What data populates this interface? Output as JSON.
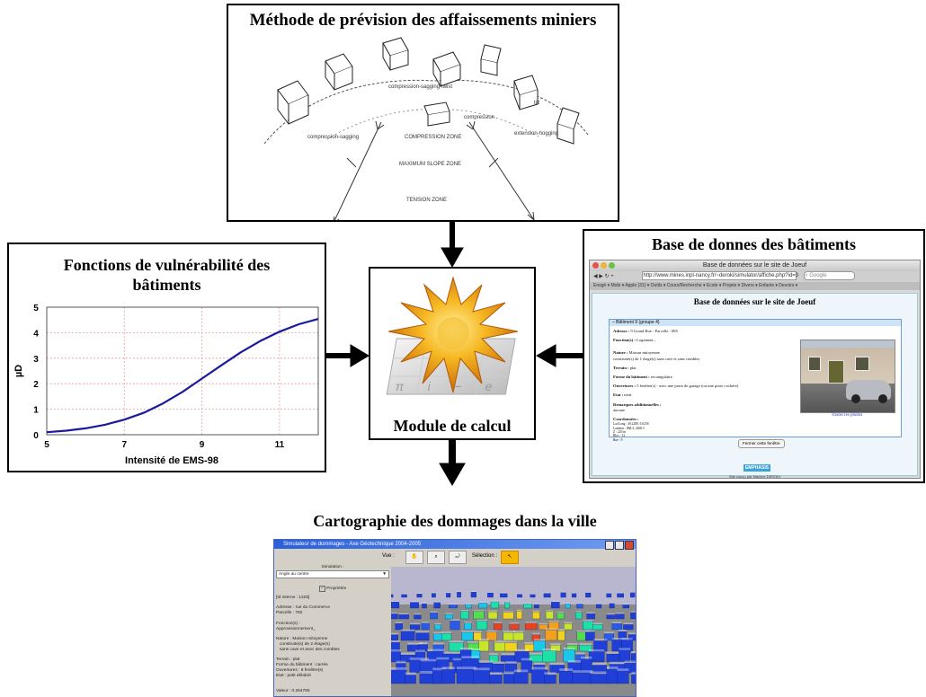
{
  "top": {
    "title": "Méthode de prévision des affaissements miniers",
    "labels": {
      "compression_sagging_twist": "compression-sagging-twist",
      "tilt": "tilt",
      "compression": "compression",
      "compression_sagging": "compression-sagging",
      "extension_hogging": "extension-hogging",
      "compression_zone": "COMPRESSION ZONE",
      "maximum_slope_zone": "MAXIMUM SLOPE ZONE",
      "tension_zone": "TENSION ZONE"
    }
  },
  "left": {
    "title_line1": "Fonctions de vulnérabilité des",
    "title_line2": "bâtiments"
  },
  "center": {
    "label": "Module de calcul"
  },
  "right": {
    "title": "Base de donnes des bâtiments",
    "browser": {
      "window_title": "Base de données sur le site de Joeuf",
      "url": "http://www.mines.inpl-nancy.fr/~deroki/simulator/affiche.php?id=3",
      "search_placeholder": "Google",
      "bookmarks": "Ensgé ▾  Mobi ▾  Apple (31) ▾  Outils ▾  Cours/Recherche ▾  Ecole ▾  Projets ▾  Divers ▾  Enfants ▾  Devoirs ▾",
      "page_heading": "Base de données sur le site de Joeuf",
      "panel_title": "Bâtiment 9 (groupe 4)",
      "adresse_label": "Adresse :",
      "adresse_value": "9 Grand Rue - Parcelle : 085",
      "fonction_label": "Fonction(s) :",
      "fonction_value": "Logement ;",
      "nature_label": "Nature :",
      "nature_value": "Maison mitoyenne",
      "nature_detail": "construite(s) de 1 étage(s) sans cave et sans combles",
      "terrain_label": "Terrain :",
      "terrain_value": "plat",
      "forme_label": "Forme du bâtiment :",
      "forme_value": "rectangulaire",
      "ouvertures_label": "Ouvertures :",
      "ouvertures_value": "5 fenêtre(s) - avec une porte de garage (ou une porte cochère)",
      "etat_label": "Etat :",
      "etat_value": "neuf",
      "remarques_label": "Remarques additionnelles :",
      "remarques_value": "aucune",
      "coord_label": "Coordonnées :",
      "coords": [
        "Lat/Long : 49.2280, 6.0258",
        "Lambert : 868.4, 2468.3",
        "Z : 220 m",
        "Bloc : 12",
        "Rue : 9"
      ],
      "photos_link": "Toutes les photos",
      "close_button": "Fermer cette fenêtre",
      "logo_text": "EMPHASIS",
      "footer": "Site conçu par Maxime DEROKI"
    }
  },
  "bottom": {
    "title": "Cartographie des dommages dans la ville",
    "app": {
      "window_title": "Simulateur de dommages - Axe Géotechnique 2004-2005",
      "vue_label": "Vue :",
      "selection_label": "Sélection :",
      "simulation_label": "Simulation :",
      "simulation_value": "Angle au centre",
      "props_title": "Propriétés",
      "props": [
        "[Id interne : 1225]",
        "",
        "Adresse : rue du Commerce",
        "Parcelle : 782",
        "",
        "Fonction(s) :",
        "Approvisionnement_",
        "",
        "Nature : Maison mitoyenne",
        "   construite(s) de 2 étage(s)",
        "   sans cave et avec des combles",
        "",
        "Terrain : plat",
        "Forme du bâtiment : carrée",
        "Ouvertures : 8 fenêtre(s)",
        "Etat : petit délabré",
        "",
        "",
        "Valeur : 0.264785"
      ]
    }
  },
  "chart_data": {
    "type": "line",
    "xlabel": "Intensité de EMS-98",
    "ylabel": "µD",
    "xlim": [
      5,
      12
    ],
    "ylim": [
      0,
      5
    ],
    "xticks": [
      5,
      7,
      9,
      11
    ],
    "yticks": [
      0,
      1,
      2,
      3,
      4,
      5
    ],
    "grid": true,
    "series": [
      {
        "color": "#1a1a9c",
        "x": [
          5,
          5.5,
          6,
          6.5,
          7,
          7.5,
          8,
          8.5,
          9,
          9.5,
          10,
          10.5,
          11,
          11.5,
          12
        ],
        "y": [
          0.1,
          0.16,
          0.25,
          0.39,
          0.59,
          0.86,
          1.23,
          1.68,
          2.2,
          2.72,
          3.23,
          3.67,
          4.04,
          4.33,
          4.54
        ]
      }
    ]
  }
}
